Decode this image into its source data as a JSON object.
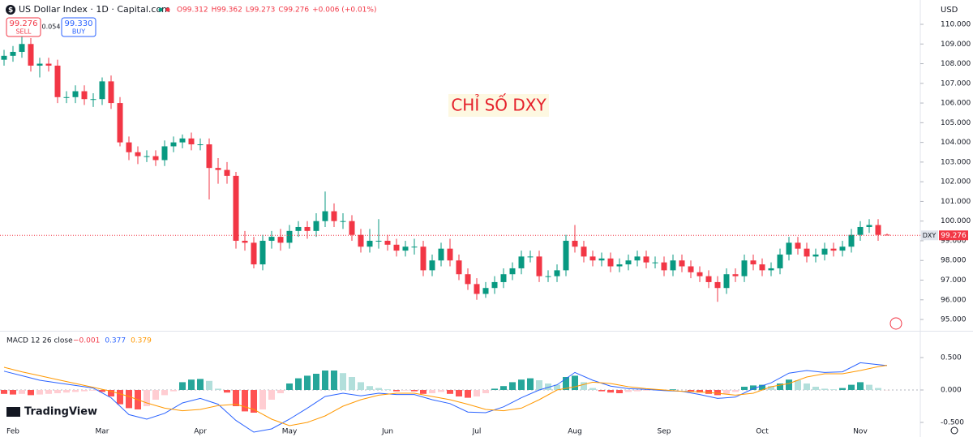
{
  "chart_data": [
    {
      "type": "candlestick",
      "symbol_title": "US Dollar Index · 1D · Capital.com",
      "quote": [
        "O99.312",
        "H99.362",
        "L99.273",
        "C99.276",
        "+0.006 (+0.01%)"
      ],
      "sell_price": "99.276",
      "sell_label": "SELL",
      "spread": "0.054",
      "buy_price": "99.330",
      "buy_label": "BUY",
      "currency": "USD",
      "annotation": "CHỈ SỐ DXY",
      "last_symbol": "DXY",
      "last_price": "99.276",
      "logo": "TradingView",
      "up_color": "#089981",
      "down_color": "#f23645",
      "categories": [
        null,
        "Feb",
        null,
        null,
        null,
        null,
        null,
        null,
        null,
        null,
        null,
        "Mar",
        null,
        null,
        null,
        null,
        null,
        null,
        null,
        null,
        null,
        null,
        "Apr",
        null,
        null,
        null,
        null,
        null,
        null,
        null,
        null,
        null,
        "May",
        null,
        null,
        null,
        null,
        null,
        null,
        null,
        null,
        null,
        null,
        "Jun",
        null,
        null,
        null,
        null,
        null,
        null,
        null,
        null,
        null,
        "Jul",
        null,
        null,
        null,
        null,
        null,
        null,
        null,
        null,
        null,
        null,
        "Aug",
        null,
        null,
        null,
        null,
        null,
        null,
        null,
        null,
        null,
        "Sep",
        null,
        null,
        null,
        null,
        null,
        null,
        null,
        null,
        null,
        null,
        "Oct",
        null,
        null,
        null,
        null,
        null,
        null,
        null,
        null,
        null,
        null,
        "Nov",
        null,
        null,
        null
      ],
      "open": [
        108.2,
        108.4,
        108.6,
        109.0,
        107.9,
        108.0,
        107.9,
        106.3,
        106.3,
        106.6,
        106.2,
        106.2,
        107.1,
        106.0,
        104.0,
        103.5,
        103.3,
        103.3,
        103.1,
        103.8,
        104.0,
        104.2,
        103.9,
        103.9,
        102.7,
        102.6,
        102.3,
        99.0,
        98.9,
        97.8,
        99.0,
        99.2,
        98.9,
        99.5,
        99.7,
        99.5,
        100.0,
        100.5,
        100.0,
        100.0,
        99.3,
        98.7,
        99.0,
        99.0,
        98.8,
        98.5,
        98.7,
        98.7,
        97.5,
        98.0,
        98.6,
        98.0,
        97.3,
        96.8,
        96.3,
        96.6,
        96.9,
        97.3,
        97.6,
        98.2,
        98.2,
        97.2,
        97.2,
        97.5,
        99.0,
        98.7,
        98.2,
        98.0,
        98.1,
        97.7,
        97.8,
        98.0,
        98.2,
        97.9,
        97.9,
        97.5,
        98.0,
        97.7,
        97.4,
        97.2,
        96.9,
        96.6,
        97.3,
        97.2,
        98.0,
        97.8,
        97.5,
        97.6,
        98.3,
        98.9,
        98.6,
        98.2,
        98.3,
        98.6,
        98.5,
        98.7,
        99.3,
        99.7,
        99.8,
        99.312
      ],
      "high": [
        108.7,
        108.9,
        109.9,
        109.3,
        108.3,
        108.3,
        108.2,
        106.6,
        106.9,
        106.9,
        106.5,
        107.3,
        107.4,
        106.3,
        104.3,
        103.8,
        103.6,
        103.6,
        104.1,
        104.3,
        104.4,
        104.5,
        104.2,
        104.2,
        103.2,
        103.0,
        102.5,
        99.5,
        99.2,
        99.3,
        99.5,
        99.6,
        99.8,
        100.0,
        100.0,
        100.4,
        101.5,
        100.9,
        100.4,
        100.3,
        99.6,
        99.6,
        100.1,
        99.3,
        99.1,
        99.0,
        99.1,
        99.0,
        98.3,
        98.9,
        99.1,
        98.3,
        97.6,
        97.1,
        96.9,
        97.2,
        97.6,
        97.9,
        98.5,
        98.5,
        98.5,
        97.5,
        97.8,
        99.3,
        99.8,
        99.0,
        98.5,
        98.4,
        98.4,
        98.1,
        98.3,
        98.5,
        98.5,
        98.2,
        98.2,
        98.3,
        98.3,
        98.0,
        97.7,
        97.5,
        97.2,
        97.6,
        97.6,
        98.3,
        98.3,
        98.1,
        97.9,
        98.6,
        99.2,
        99.2,
        98.9,
        98.6,
        98.9,
        98.9,
        99.0,
        99.6,
        100.0,
        100.1,
        100.1,
        99.362
      ],
      "low": [
        107.9,
        108.1,
        108.3,
        107.6,
        107.3,
        107.6,
        106.0,
        106.0,
        106.0,
        105.9,
        105.8,
        105.9,
        105.7,
        103.8,
        103.1,
        102.9,
        103.0,
        102.8,
        102.8,
        103.5,
        103.7,
        103.6,
        103.6,
        101.1,
        101.9,
        101.9,
        98.6,
        98.5,
        97.6,
        97.5,
        98.6,
        98.5,
        98.6,
        99.2,
        99.1,
        99.2,
        99.7,
        99.7,
        99.6,
        99.0,
        98.4,
        98.4,
        98.6,
        98.5,
        98.2,
        98.2,
        98.3,
        97.2,
        97.2,
        97.7,
        97.7,
        97.0,
        96.5,
        96.0,
        96.1,
        96.3,
        96.6,
        97.0,
        97.3,
        97.9,
        96.9,
        96.9,
        96.9,
        97.2,
        98.4,
        97.9,
        97.7,
        97.7,
        97.4,
        97.4,
        97.5,
        97.7,
        97.6,
        97.6,
        97.2,
        97.2,
        97.4,
        97.1,
        96.9,
        96.6,
        95.9,
        96.3,
        96.9,
        96.9,
        97.5,
        97.2,
        97.2,
        97.3,
        98.0,
        98.3,
        97.9,
        97.9,
        98.0,
        98.2,
        98.2,
        98.4,
        99.0,
        99.4,
        99.0,
        99.273
      ],
      "close": [
        108.4,
        108.6,
        109.0,
        107.9,
        108.0,
        107.9,
        106.3,
        106.3,
        106.6,
        106.2,
        106.2,
        107.1,
        106.0,
        104.0,
        103.5,
        103.3,
        103.3,
        103.1,
        103.8,
        104.0,
        104.2,
        103.9,
        103.9,
        102.7,
        102.6,
        102.3,
        99.0,
        98.9,
        97.8,
        99.0,
        99.2,
        98.9,
        99.5,
        99.7,
        99.5,
        100.0,
        100.5,
        100.0,
        100.0,
        99.3,
        98.7,
        99.0,
        99.0,
        98.8,
        98.5,
        98.7,
        98.7,
        97.5,
        98.0,
        98.6,
        98.0,
        97.3,
        96.8,
        96.3,
        96.6,
        96.9,
        97.3,
        97.6,
        98.2,
        98.2,
        97.2,
        97.2,
        97.5,
        99.0,
        98.7,
        98.2,
        98.0,
        98.1,
        97.7,
        97.8,
        98.0,
        98.2,
        97.9,
        97.9,
        97.5,
        98.0,
        97.7,
        97.4,
        97.2,
        96.9,
        96.6,
        97.3,
        97.2,
        98.0,
        97.8,
        97.5,
        97.6,
        98.3,
        98.9,
        98.6,
        98.2,
        98.3,
        98.6,
        98.5,
        98.7,
        99.3,
        99.7,
        99.8,
        99.3,
        99.276
      ],
      "ylim": [
        94.425,
        111.236
      ],
      "yticks": [
        {
          "value": 95,
          "label": "95.000"
        },
        {
          "value": 96,
          "label": "96.000"
        },
        {
          "value": 97,
          "label": "97.000"
        },
        {
          "value": 98,
          "label": "98.000"
        },
        {
          "value": 99,
          "label": "99.000"
        },
        {
          "value": 100,
          "label": "100.000"
        },
        {
          "value": 101,
          "label": "101.000"
        },
        {
          "value": 102,
          "label": "102.000"
        },
        {
          "value": 103,
          "label": "103.000"
        },
        {
          "value": 104,
          "label": "104.000"
        },
        {
          "value": 105,
          "label": "105.000"
        },
        {
          "value": 106,
          "label": "106.000"
        },
        {
          "value": 107,
          "label": "107.000"
        },
        {
          "value": 108,
          "label": "108.000"
        },
        {
          "value": 109,
          "label": "109.000"
        },
        {
          "value": 110,
          "label": "110.000"
        }
      ]
    },
    {
      "type": "macd",
      "title": "MACD 12 26 close",
      "ylim": [
        -0.725,
        0.8875
      ],
      "yticks": [
        {
          "value": -0.5,
          "label": "-0.500"
        },
        {
          "value": 0,
          "label": "0.000"
        },
        {
          "value": 0.5,
          "label": "0.500"
        }
      ],
      "series": [
        {
          "kind": "bar",
          "colors": [
            "#26a69a",
            "#b2dfdb",
            "#ffcdd2",
            "#ff5252"
          ],
          "last_label": "−0.001",
          "label_color": "#f23645",
          "values": [
            -0.06,
            -0.07,
            -0.06,
            -0.08,
            -0.07,
            -0.06,
            -0.05,
            -0.04,
            -0.03,
            -0.02,
            -0.01,
            -0.03,
            -0.1,
            -0.22,
            -0.28,
            -0.3,
            -0.25,
            -0.15,
            -0.08,
            -0.02,
            0.12,
            0.16,
            0.17,
            0.14,
            0.02,
            -0.04,
            -0.25,
            -0.33,
            -0.35,
            -0.3,
            -0.15,
            -0.05,
            0.1,
            0.18,
            0.22,
            0.25,
            0.3,
            0.3,
            0.26,
            0.2,
            0.12,
            0.06,
            0.03,
            0.01,
            -0.02,
            -0.01,
            -0.02,
            -0.06,
            -0.05,
            -0.03,
            -0.06,
            -0.1,
            -0.12,
            -0.1,
            -0.05,
            0.02,
            0.06,
            0.12,
            0.16,
            0.18,
            0.15,
            0.1,
            0.08,
            0.2,
            0.22,
            0.12,
            0.03,
            -0.02,
            -0.04,
            -0.05,
            -0.03,
            -0.02,
            -0.01,
            0.01,
            -0.01,
            0.01,
            0.0,
            -0.02,
            -0.04,
            -0.06,
            -0.08,
            -0.06,
            -0.03,
            0.05,
            0.07,
            0.08,
            0.06,
            0.1,
            0.16,
            0.15,
            0.1,
            0.05,
            0.02,
            0.01,
            0.03,
            0.08,
            0.12,
            0.08,
            0.03,
            -0.001
          ]
        },
        {
          "kind": "line",
          "color": "#2962ff",
          "last_label": "0.377",
          "x": [
            0,
            2,
            4,
            6,
            8,
            10,
            12,
            14,
            16,
            18,
            20,
            22,
            24,
            26,
            28,
            30,
            32,
            34,
            36,
            38,
            40,
            42,
            44,
            46,
            48,
            50,
            52,
            54,
            56,
            58,
            60,
            62,
            64,
            66,
            68,
            70,
            72,
            74,
            76,
            78,
            80,
            82,
            84,
            86,
            88,
            90,
            92,
            94,
            96,
            98,
            99
          ],
          "values": [
            0.29,
            0.22,
            0.15,
            0.11,
            0.07,
            0.03,
            -0.12,
            -0.38,
            -0.45,
            -0.36,
            -0.2,
            -0.13,
            -0.22,
            -0.47,
            -0.65,
            -0.6,
            -0.45,
            -0.28,
            -0.1,
            -0.05,
            -0.09,
            -0.05,
            -0.07,
            -0.07,
            -0.15,
            -0.21,
            -0.34,
            -0.35,
            -0.26,
            -0.12,
            0.0,
            0.08,
            0.27,
            0.15,
            0.06,
            0.02,
            0.01,
            -0.01,
            -0.02,
            -0.07,
            -0.13,
            -0.11,
            0.02,
            0.11,
            0.26,
            0.3,
            0.27,
            0.28,
            0.42,
            0.39,
            0.377
          ]
        },
        {
          "kind": "line",
          "color": "#ff9800",
          "last_label": "0.379",
          "x": [
            0,
            2,
            4,
            6,
            8,
            10,
            12,
            14,
            16,
            18,
            20,
            22,
            24,
            26,
            28,
            30,
            32,
            34,
            36,
            38,
            40,
            42,
            44,
            46,
            48,
            50,
            52,
            54,
            56,
            58,
            60,
            62,
            64,
            66,
            68,
            70,
            72,
            74,
            76,
            78,
            80,
            82,
            84,
            86,
            88,
            90,
            92,
            94,
            96,
            98,
            99
          ],
          "values": [
            0.35,
            0.28,
            0.22,
            0.16,
            0.1,
            0.04,
            -0.02,
            -0.1,
            -0.2,
            -0.28,
            -0.32,
            -0.3,
            -0.24,
            -0.22,
            -0.3,
            -0.45,
            -0.55,
            -0.5,
            -0.4,
            -0.25,
            -0.15,
            -0.08,
            -0.05,
            -0.05,
            -0.1,
            -0.15,
            -0.22,
            -0.3,
            -0.32,
            -0.28,
            -0.15,
            0.0,
            0.05,
            0.12,
            0.1,
            0.05,
            0.02,
            0.0,
            -0.02,
            -0.03,
            -0.05,
            -0.08,
            -0.05,
            0.05,
            0.1,
            0.2,
            0.25,
            0.25,
            0.3,
            0.36,
            0.379
          ]
        }
      ]
    }
  ]
}
